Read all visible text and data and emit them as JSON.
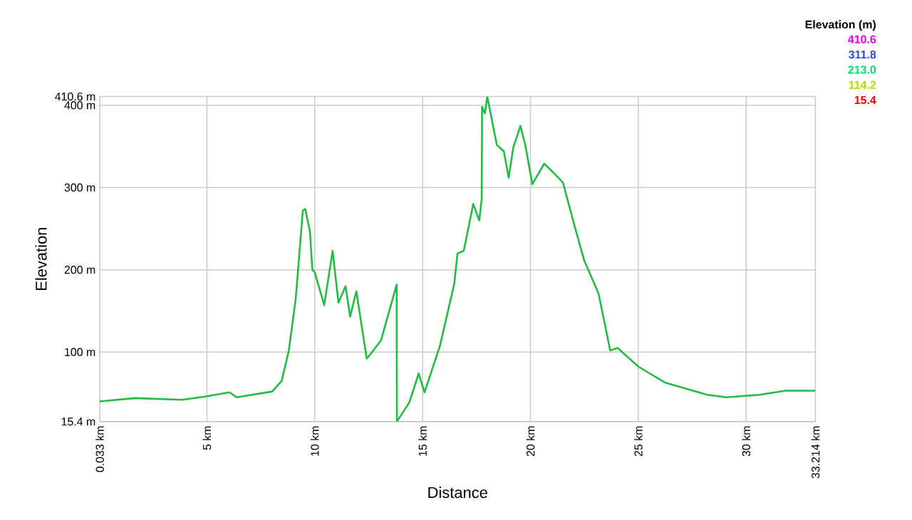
{
  "chart_data": {
    "type": "line",
    "xlabel": "Distance",
    "ylabel": "Elevation",
    "x": [
      0.033,
      1.67,
      3.86,
      4.96,
      6.05,
      6.38,
      8.03,
      8.47,
      8.8,
      9.12,
      9.45,
      9.56,
      9.78,
      9.89,
      10.0,
      10.44,
      10.83,
      11.1,
      11.43,
      11.64,
      11.93,
      12.41,
      12.63,
      13.07,
      13.8,
      13.81,
      14.39,
      14.82,
      15.09,
      15.81,
      16.47,
      16.62,
      16.91,
      17.35,
      17.63,
      17.74,
      17.76,
      17.89,
      18.0,
      18.44,
      18.77,
      18.99,
      19.21,
      19.54,
      19.76,
      20.09,
      20.64,
      21.07,
      21.51,
      22.06,
      22.5,
      23.16,
      23.7,
      24.04,
      25.02,
      26.23,
      28.2,
      29.08,
      30.61,
      31.82,
      33.214
    ],
    "values": [
      40,
      44,
      42,
      46,
      51,
      45,
      52,
      65,
      102,
      165,
      272,
      274,
      246,
      200,
      197,
      157,
      223,
      160,
      180,
      143,
      174,
      92,
      99,
      114,
      182,
      15.4,
      39,
      74,
      51,
      108,
      183,
      220,
      223,
      280,
      260,
      286,
      398,
      390,
      410.6,
      352,
      344,
      312,
      349,
      375,
      352,
      304,
      329,
      318,
      306,
      252,
      211,
      171,
      102,
      105,
      82,
      63,
      48,
      45,
      48,
      53,
      53
    ],
    "xlim": [
      0.033,
      33.214
    ],
    "ylim": [
      15.4,
      410.6
    ],
    "xticks": [
      {
        "value": 0.033,
        "label": "0.033 km"
      },
      {
        "value": 5,
        "label": "5 km"
      },
      {
        "value": 10,
        "label": "10 km"
      },
      {
        "value": 15,
        "label": "15 km"
      },
      {
        "value": 20,
        "label": "20 km"
      },
      {
        "value": 25,
        "label": "25 km"
      },
      {
        "value": 30,
        "label": "30 km"
      },
      {
        "value": 33.214,
        "label": "33.214 km"
      }
    ],
    "yticks": [
      {
        "value": 15.4,
        "label": "15.4 m"
      },
      {
        "value": 100,
        "label": "100 m"
      },
      {
        "value": 200,
        "label": "200 m"
      },
      {
        "value": 300,
        "label": "300 m"
      },
      {
        "value": 400,
        "label": "400 m"
      },
      {
        "value": 410.6,
        "label": "410.6 m"
      }
    ],
    "color": "#22bb44",
    "annotations": [
      "Elevation (m)",
      "410.6",
      "311.8",
      "213.0",
      "114.2",
      "15.4"
    ],
    "grid": true
  }
}
